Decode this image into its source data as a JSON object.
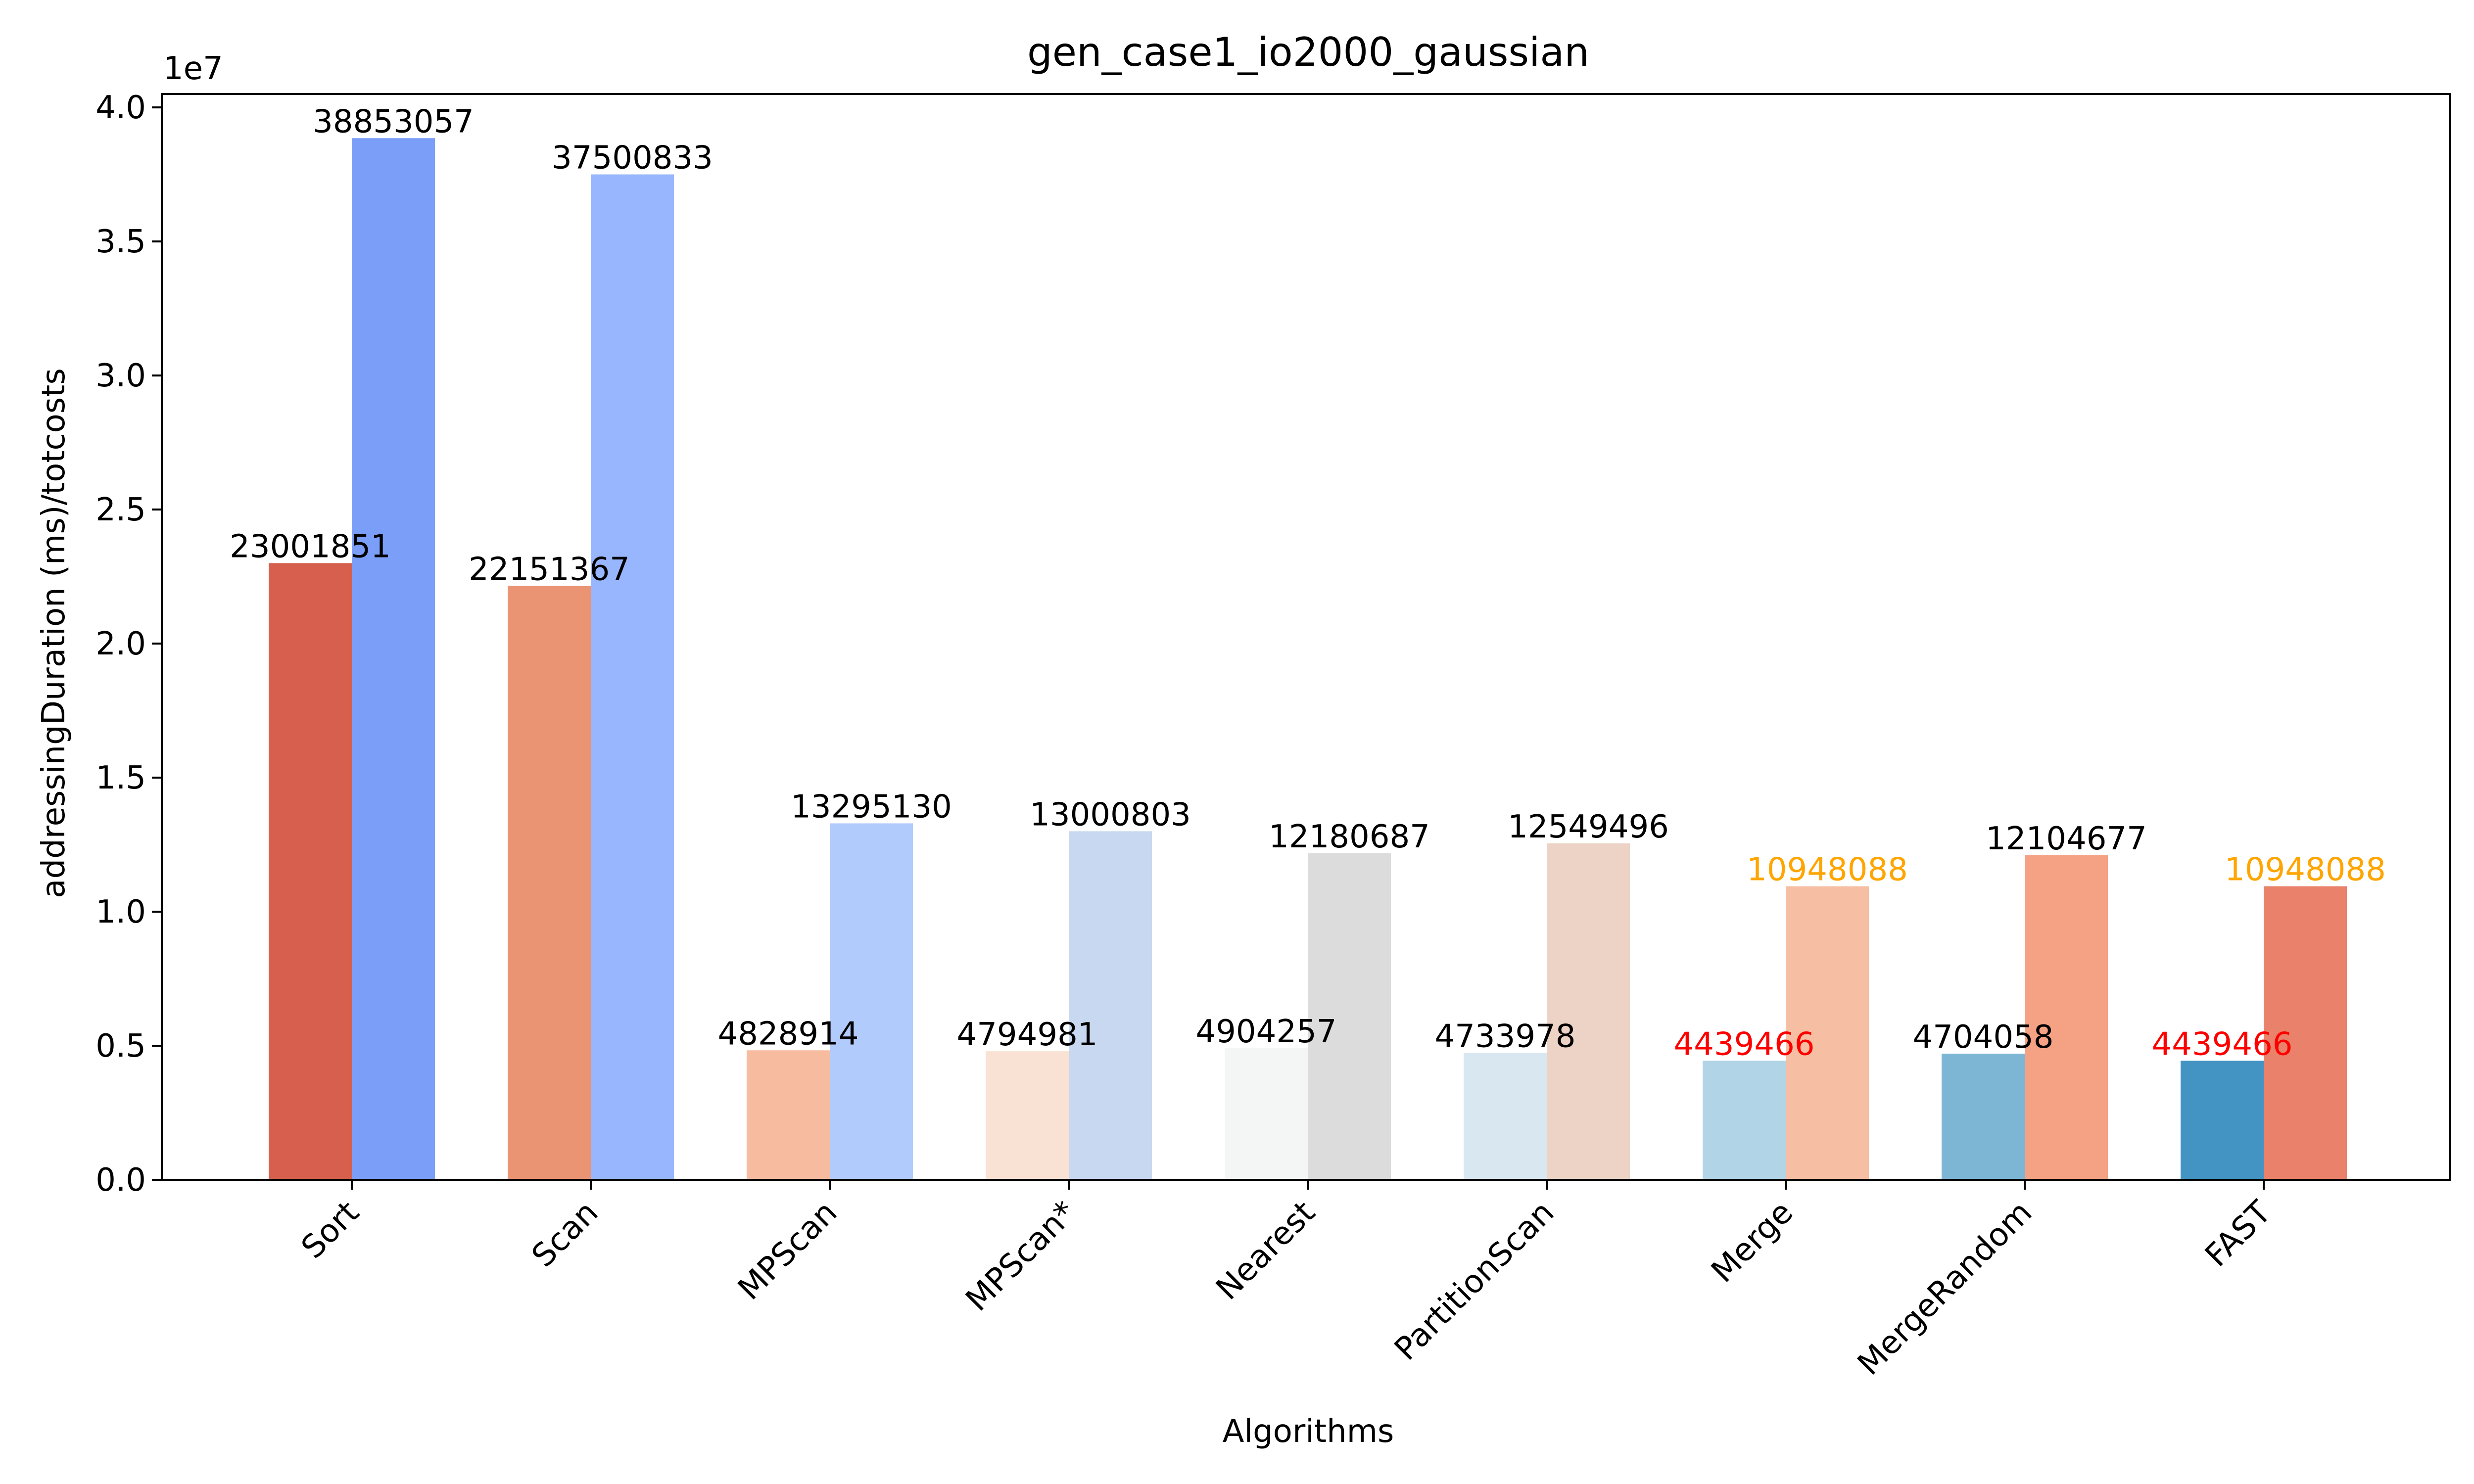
{
  "chart_data": {
    "type": "bar",
    "title": "gen_case1_io2000_gaussian",
    "xlabel": "Algorithms",
    "ylabel": "addressingDuration (ms)/totcosts",
    "y_offset_label": "1e7",
    "ylim": [
      0,
      40500000
    ],
    "yticks": [
      0,
      5000000,
      10000000,
      15000000,
      20000000,
      25000000,
      30000000,
      35000000,
      40000000
    ],
    "ytick_labels": [
      "0.0",
      "0.5",
      "1.0",
      "1.5",
      "2.0",
      "2.5",
      "3.0",
      "3.5",
      "4.0"
    ],
    "grid": false,
    "categories": [
      "Sort",
      "Scan",
      "MPScan",
      "MPScan*",
      "Nearest",
      "PartitionScan",
      "Merge",
      "MergeRandom",
      "FAST"
    ],
    "series": [
      {
        "values": [
          23001851,
          22151367,
          4828914,
          4794981,
          4904257,
          4733978,
          4439466,
          4704058,
          4439466
        ],
        "colors": [
          "#d6604d",
          "#ea9473",
          "#f7bba0",
          "#f9e2d3",
          "#f4f5f5",
          "#d9e7f1",
          "#b2d4e7",
          "#7db6d4",
          "#4393c3"
        ],
        "label_colors": [
          "#000000",
          "#000000",
          "#000000",
          "#000000",
          "#000000",
          "#000000",
          "#ff0000",
          "#000000",
          "#ff0000"
        ]
      },
      {
        "values": [
          38853057,
          37500833,
          13295130,
          13000803,
          12180687,
          12549496,
          10948088,
          12104677,
          10948088
        ],
        "colors": [
          "#7b9ff9",
          "#98b6fe",
          "#b1cbfc",
          "#c8d8f0",
          "#dcdcdc",
          "#ecd3c5",
          "#f6bea2",
          "#f4a283",
          "#e9816b"
        ],
        "label_colors": [
          "#000000",
          "#000000",
          "#000000",
          "#000000",
          "#000000",
          "#000000",
          "#ffa500",
          "#000000",
          "#ffa500"
        ]
      }
    ]
  }
}
